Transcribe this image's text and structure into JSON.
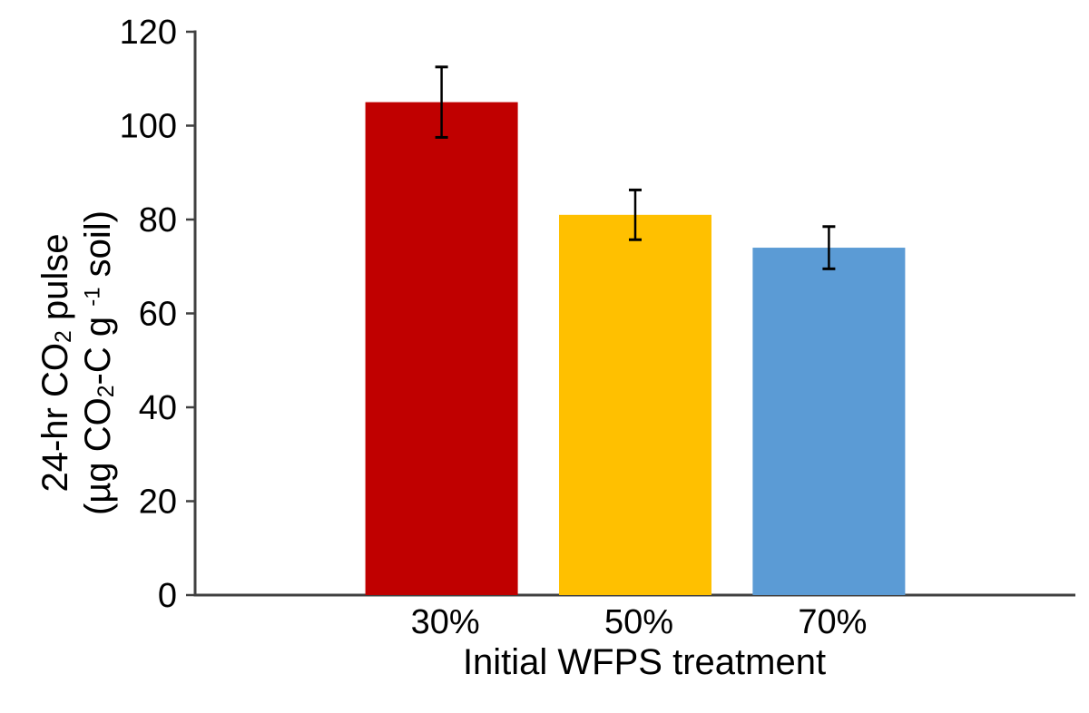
{
  "chart_data": {
    "type": "bar",
    "title": "",
    "categories": [
      "30%",
      "50%",
      "70%"
    ],
    "values": [
      105,
      81,
      74
    ],
    "error_bars": [
      7.5,
      5.3,
      4.5
    ],
    "bar_colors": [
      "#C00000",
      "#FFC000",
      "#5B9BD5"
    ],
    "xlabel": "Initial WFPS treatment",
    "ylabel": "24-hr CO2 pulse (µg CO2-C g-1 soil)",
    "ylabel_rich": {
      "line1": {
        "pre": "24-hr CO",
        "sub": "2",
        "post": " pulse"
      },
      "line2": {
        "pre": "(µg CO",
        "sub": "2",
        "mid": "-C g ",
        "sup": "-1",
        "post": " soil)"
      }
    },
    "ylim": [
      0,
      120
    ],
    "yticks": [
      "0",
      "20",
      "40",
      "60",
      "80",
      "100",
      "120"
    ],
    "grid": false,
    "legend": false,
    "legend_position": "none",
    "axis_color": "#404040",
    "error_bar_color": "#000000",
    "text_color": "#000000",
    "background_color": "#ffffff"
  }
}
